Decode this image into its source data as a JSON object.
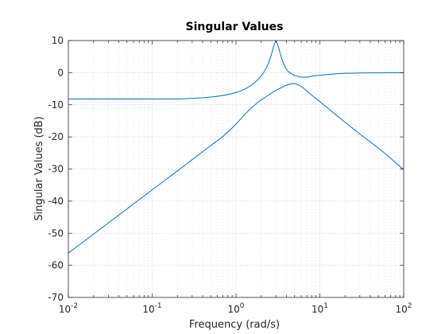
{
  "chart_data": {
    "type": "line",
    "title": "Singular Values",
    "xlabel": "Frequency (rad/s)",
    "ylabel": "Singular Values (dB)",
    "xscale": "log",
    "xlim": [
      0.01,
      100
    ],
    "ylim": [
      -70,
      10
    ],
    "grid": "major and minor dotted",
    "legend": "none",
    "line_color": "#0072BD",
    "x_ticks": [
      {
        "base": "10",
        "exp": "-2"
      },
      {
        "base": "10",
        "exp": "-1"
      },
      {
        "base": "10",
        "exp": "0"
      },
      {
        "base": "10",
        "exp": "1"
      },
      {
        "base": "10",
        "exp": "2"
      }
    ],
    "y_ticks": [
      "10",
      "0",
      "-10",
      "-20",
      "-30",
      "-40",
      "-50",
      "-60",
      "-70"
    ],
    "series": [
      {
        "x": [
          0.01,
          0.03,
          0.1,
          0.2,
          0.3,
          0.5,
          0.7,
          1.0,
          1.3,
          1.6,
          2.0,
          2.3,
          2.6,
          2.8,
          3.0,
          3.2,
          3.5,
          4.0,
          4.5,
          5.0,
          6.0,
          7.0,
          8.0,
          10,
          15,
          20,
          30,
          50,
          100
        ],
        "y": [
          -8.2,
          -8.2,
          -8.2,
          -8.2,
          -8.0,
          -7.6,
          -7.1,
          -6.2,
          -5.0,
          -3.5,
          -1.0,
          1.5,
          5.0,
          8.0,
          9.8,
          8.0,
          4.5,
          1.0,
          -0.2,
          -0.8,
          -1.4,
          -1.4,
          -1.1,
          -0.8,
          -0.4,
          -0.2,
          -0.1,
          -0.05,
          0
        ]
      },
      {
        "x": [
          0.01,
          0.1,
          0.2,
          0.3,
          0.5,
          0.7,
          1.0,
          1.3,
          1.6,
          2.0,
          2.5,
          3.0,
          3.5,
          4.0,
          4.5,
          5.0,
          6.0,
          7.0,
          8.0,
          10,
          15,
          20,
          30,
          50,
          100
        ],
        "y": [
          -56.2,
          -36.5,
          -30.6,
          -27.1,
          -22.7,
          -19.8,
          -16.0,
          -12.8,
          -10.5,
          -8.5,
          -6.8,
          -5.5,
          -4.6,
          -3.9,
          -3.5,
          -3.4,
          -4.3,
          -5.7,
          -7.0,
          -9.0,
          -12.8,
          -15.4,
          -19.1,
          -23.5,
          -30.2
        ]
      }
    ]
  }
}
